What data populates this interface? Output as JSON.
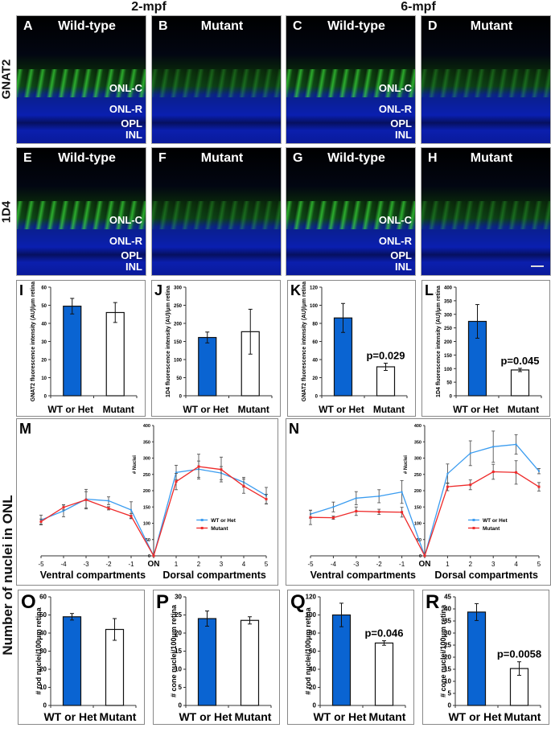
{
  "figure": {
    "column_titles": [
      "2-mpf",
      "6-mpf"
    ],
    "row_labels": [
      "GNAT2",
      "1D4"
    ],
    "side_label": "Number of nuclei in ONL",
    "micrographs": [
      {
        "panel": "A",
        "genotype": "Wild-type",
        "layers": [
          "ONL-C",
          "ONL-R",
          "OPL",
          "INL"
        ]
      },
      {
        "panel": "B",
        "genotype": "Mutant",
        "layers": []
      },
      {
        "panel": "C",
        "genotype": "Wild-type",
        "layers": [
          "ONL-C",
          "ONL-R",
          "OPL",
          "INL"
        ]
      },
      {
        "panel": "D",
        "genotype": "Mutant",
        "layers": []
      },
      {
        "panel": "E",
        "genotype": "Wild-type",
        "layers": [
          "ONL-C",
          "ONL-R",
          "OPL",
          "INL"
        ]
      },
      {
        "panel": "F",
        "genotype": "Mutant",
        "layers": []
      },
      {
        "panel": "G",
        "genotype": "Wild-type",
        "layers": [
          "ONL-C",
          "ONL-R",
          "OPL",
          "INL"
        ]
      },
      {
        "panel": "H",
        "genotype": "Mutant",
        "layers": []
      }
    ]
  },
  "chart_data": [
    {
      "panel": "I",
      "type": "bar",
      "categories": [
        "WT or Het",
        "Mutant"
      ],
      "values": [
        49.5,
        46
      ],
      "errors": [
        4.3,
        5.5
      ],
      "ylabel": "GNAT2 fluorescence intensity (AU)/μm retina",
      "ylim": [
        0,
        60
      ],
      "yticks": [
        0,
        10,
        20,
        30,
        40,
        50,
        60
      ],
      "pvalue": ""
    },
    {
      "panel": "J",
      "type": "bar",
      "categories": [
        "WT or Het",
        "Mutant"
      ],
      "values": [
        161,
        177
      ],
      "errors": [
        15,
        62
      ],
      "ylabel": "1D4 fluorescence intensity (AU)/μm retina",
      "ylim": [
        0,
        300
      ],
      "yticks": [
        0,
        50,
        100,
        150,
        200,
        250,
        300
      ],
      "pvalue": ""
    },
    {
      "panel": "K",
      "type": "bar",
      "categories": [
        "WT or Het",
        "Mutant"
      ],
      "values": [
        86,
        32
      ],
      "errors": [
        16,
        4
      ],
      "ylabel": "GNAT2 fluorescence intensity (AU)/μm retina",
      "ylim": [
        0,
        120
      ],
      "yticks": [
        0,
        20,
        40,
        60,
        80,
        100,
        120
      ],
      "pvalue": "p=0.029"
    },
    {
      "panel": "L",
      "type": "bar",
      "categories": [
        "WT or Het",
        "Mutant"
      ],
      "values": [
        274,
        95
      ],
      "errors": [
        62,
        6
      ],
      "ylabel": "1D4 fluorescence intensity (AU)/μm retina",
      "ylim": [
        0,
        400
      ],
      "yticks": [
        0,
        50,
        100,
        150,
        200,
        250,
        300,
        350,
        400
      ],
      "pvalue": "p=0.045"
    },
    {
      "panel": "M",
      "type": "line",
      "x": [
        "-5",
        "-4",
        "-3",
        "-2",
        "-1",
        "ON",
        "1",
        "2",
        "3",
        "4",
        "5"
      ],
      "xlabel_left": "Ventral compartments",
      "xlabel_right": "Dorsal compartments",
      "ylabel": "# Nuclei",
      "ylim": [
        0,
        400
      ],
      "yticks": [
        0,
        50,
        100,
        150,
        200,
        250,
        300,
        350,
        400
      ],
      "series": [
        {
          "name": "WT or Het",
          "color": "#3a9cf0",
          "values": [
            110,
            138,
            174,
            169,
            141,
            0,
            256,
            266,
            254,
            226,
            185
          ],
          "errors": [
            15,
            18,
            30,
            12,
            25,
            0,
            22,
            25,
            20,
            15,
            25
          ]
        },
        {
          "name": "Mutant",
          "color": "#ee2a2a",
          "values": [
            105,
            149,
            172,
            146,
            122,
            0,
            228,
            274,
            265,
            214,
            174
          ],
          "errors": [
            8,
            8,
            25,
            5,
            8,
            0,
            25,
            38,
            38,
            22,
            15
          ]
        }
      ],
      "legend": "center-right"
    },
    {
      "panel": "N",
      "type": "line",
      "x": [
        "-5",
        "-4",
        "-3",
        "-2",
        "-1",
        "ON",
        "1",
        "2",
        "3",
        "4",
        "5"
      ],
      "xlabel_left": "Ventral compartments",
      "xlabel_right": "Dorsal compartments",
      "ylabel": "# Nuclei",
      "ylim": [
        0,
        400
      ],
      "yticks": [
        0,
        50,
        100,
        150,
        200,
        250,
        300,
        350,
        400
      ],
      "series": [
        {
          "name": "WT or Het",
          "color": "#3a9cf0",
          "values": [
            128,
            150,
            177,
            183,
            196,
            0,
            252,
            315,
            335,
            342,
            260
          ],
          "errors": [
            12,
            15,
            20,
            20,
            35,
            0,
            30,
            38,
            48,
            30,
            8
          ]
        },
        {
          "name": "Mutant",
          "color": "#ee2a2a",
          "values": [
            118,
            117,
            137,
            135,
            134,
            0,
            212,
            218,
            258,
            256,
            212
          ],
          "errors": [
            22,
            5,
            13,
            8,
            15,
            0,
            12,
            15,
            23,
            36,
            13
          ]
        }
      ],
      "legend": "center-right"
    },
    {
      "panel": "O",
      "type": "bar",
      "categories": [
        "WT or Het",
        "Mutant"
      ],
      "values": [
        49,
        42
      ],
      "errors": [
        1.8,
        6
      ],
      "ylabel": "# rod nuclei/100μm retina",
      "ylim": [
        0,
        60
      ],
      "yticks": [
        0,
        10,
        20,
        30,
        40,
        50,
        60
      ],
      "pvalue": ""
    },
    {
      "panel": "P",
      "type": "bar",
      "categories": [
        "WT or Het",
        "Mutant"
      ],
      "values": [
        24,
        23.5
      ],
      "errors": [
        2.1,
        1
      ],
      "ylabel": "# cone nuclei/100μm retina",
      "ylim": [
        0,
        30
      ],
      "yticks": [
        0,
        5,
        10,
        15,
        20,
        25,
        30
      ],
      "pvalue": ""
    },
    {
      "panel": "Q",
      "type": "bar",
      "categories": [
        "WT or Het",
        "Mutant"
      ],
      "values": [
        100,
        69
      ],
      "errors": [
        13,
        2.5
      ],
      "ylabel": "# rod nuclei/100μm retina",
      "ylim": [
        0,
        120
      ],
      "yticks": [
        0,
        20,
        40,
        60,
        80,
        100,
        120
      ],
      "pvalue": "p=0.046"
    },
    {
      "panel": "R",
      "type": "bar",
      "categories": [
        "WT or Het",
        "Mutant"
      ],
      "values": [
        38.7,
        15.3
      ],
      "errors": [
        3.5,
        2.8
      ],
      "ylabel": "# cone nuclei/100μm retina",
      "ylim": [
        0,
        45
      ],
      "yticks": [
        0,
        5,
        10,
        15,
        20,
        25,
        30,
        35,
        40,
        45
      ],
      "pvalue": "p=0.0058"
    }
  ],
  "colors": {
    "wt_bar": "#0a64d2",
    "mutant_bar": "#ffffff"
  }
}
